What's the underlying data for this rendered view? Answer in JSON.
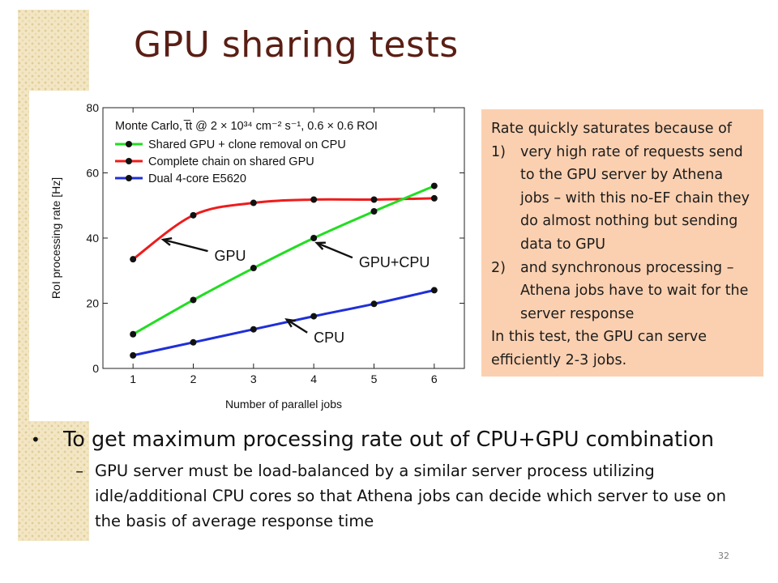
{
  "slide": {
    "title": "GPU sharing tests",
    "page_number": "32"
  },
  "note_box": {
    "intro": "Rate quickly saturates because of",
    "items": [
      {
        "num": "1)",
        "text": "very high rate of requests send to the GPU server by Athena jobs – with this no-EF chain they do almost nothing but sending data to GPU"
      },
      {
        "num": "2)",
        "text": "and synchronous processing – Athena jobs have to wait for the server response"
      }
    ],
    "conclusion": "In this test, the GPU can serve efficiently 2-3 jobs."
  },
  "bullets": {
    "main": "To get maximum processing rate out of CPU+GPU combination",
    "sub_marker": "–",
    "sub": "GPU server must be load-balanced by a similar server process utilizing idle/additional CPU cores so that Athena jobs can decide which server to use on the basis of average response time"
  },
  "chart_data": {
    "type": "line",
    "title": "Monte Carlo, t̅t @ 2 × 10³⁴ cm⁻² s⁻¹, 0.6 × 0.6 ROI",
    "xlabel": "Number of parallel jobs",
    "ylabel": "RoI processing rate [Hz]",
    "x": [
      1,
      2,
      3,
      4,
      5,
      6
    ],
    "xlim": [
      0.5,
      6.5
    ],
    "ylim": [
      0,
      80
    ],
    "xticks": [
      1,
      2,
      3,
      4,
      5,
      6
    ],
    "yticks": [
      0,
      20,
      40,
      60,
      80
    ],
    "grid": false,
    "legend_position": "top-left",
    "series": [
      {
        "name": "Shared GPU + clone removal on CPU",
        "color": "#22dd22",
        "values": [
          10.5,
          21,
          30.8,
          40,
          48.2,
          56
        ]
      },
      {
        "name": "Complete chain on shared GPU",
        "color": "#ee1c1c",
        "values": [
          33.5,
          47,
          50.8,
          51.8,
          51.8,
          52.2
        ]
      },
      {
        "name": "Dual 4-core E5620",
        "color": "#1f2fd8",
        "values": [
          4,
          8,
          12,
          16,
          19.8,
          24
        ]
      }
    ],
    "annotations": [
      {
        "text": "GPU",
        "x": 2.35,
        "y": 34.5,
        "arrow_to": [
          1.5,
          39.5
        ]
      },
      {
        "text": "GPU+CPU",
        "x": 4.75,
        "y": 32.5,
        "arrow_to": [
          4.05,
          38.5
        ]
      },
      {
        "text": "CPU",
        "x": 4.0,
        "y": 9.5,
        "arrow_to": [
          3.55,
          15
        ]
      }
    ],
    "colors": {
      "marker": "#111111",
      "axis": "#222222"
    }
  }
}
